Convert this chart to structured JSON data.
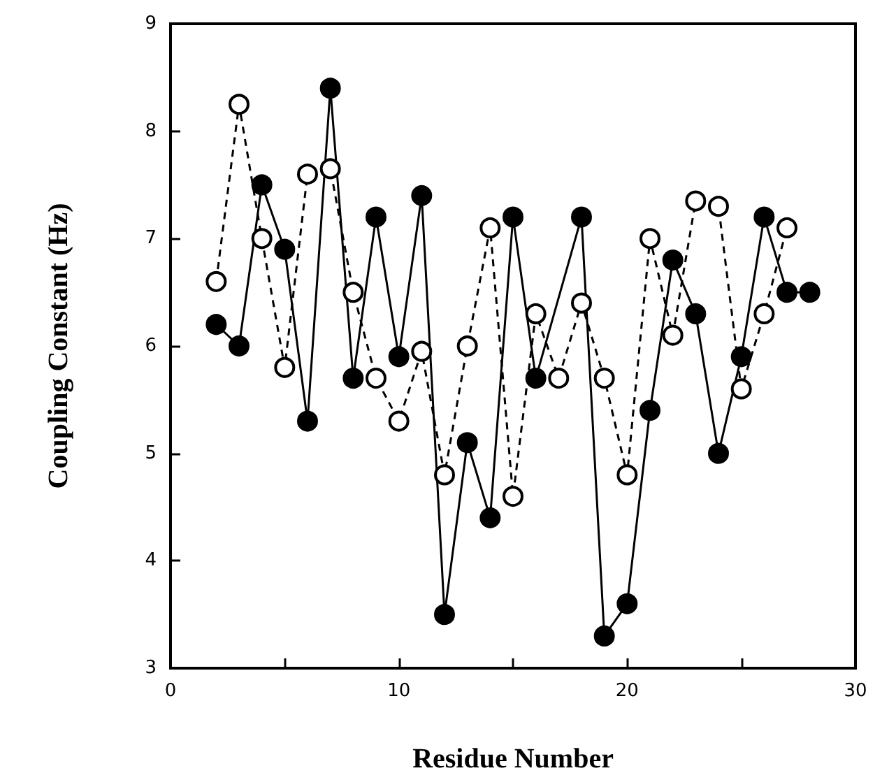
{
  "chart_data": {
    "type": "line",
    "xlabel": "Residue Number",
    "ylabel": "Coupling Constant (Hz)",
    "xlim": [
      0,
      30
    ],
    "xticks": [
      0,
      {
        "value": 5,
        "label": null
      },
      10,
      {
        "value": 15,
        "label": null
      },
      20,
      {
        "value": 25,
        "label": null
      },
      30
    ],
    "ylim": [
      3,
      9
    ],
    "yticks": [
      3,
      4,
      5,
      6,
      7,
      8,
      9
    ],
    "grid": false,
    "marker": "circle",
    "series": [
      {
        "color": "#000000",
        "line_style": "solid",
        "x": [
          2,
          3,
          4,
          5,
          6,
          7,
          8,
          9,
          10,
          11,
          12,
          13,
          14,
          15,
          16,
          17,
          18,
          19,
          20,
          21,
          22,
          23,
          24,
          25,
          26,
          27,
          28
        ],
        "values": [
          6.2,
          6.0,
          7.5,
          6.9,
          5.3,
          8.4,
          5.7,
          7.2,
          5.9,
          7.4,
          3.5,
          5.1,
          4.4,
          7.2,
          5.7,
          null,
          7.2,
          3.3,
          3.6,
          5.4,
          6.8,
          6.3,
          5.0,
          5.9,
          7.2,
          6.5,
          6.5
        ]
      },
      {
        "color": "#000000",
        "line_style": "dashed",
        "x": [
          2,
          3,
          4,
          5,
          6,
          7,
          8,
          9,
          10,
          11,
          12,
          13,
          14,
          15,
          16,
          17,
          18,
          19,
          20,
          21,
          22,
          23,
          24,
          25,
          26,
          27
        ],
        "values": [
          6.6,
          8.25,
          7.0,
          5.8,
          7.6,
          7.65,
          6.5,
          5.7,
          5.3,
          5.95,
          4.8,
          6.0,
          7.1,
          4.6,
          6.3,
          5.7,
          6.4,
          5.7,
          4.8,
          7.0,
          6.1,
          7.35,
          7.3,
          5.6,
          6.3,
          7.1
        ]
      }
    ]
  }
}
